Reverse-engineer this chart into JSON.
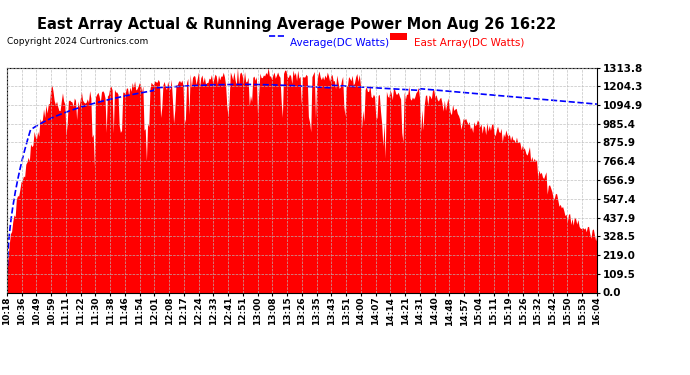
{
  "title": "East Array Actual & Running Average Power Mon Aug 26 16:22",
  "copyright": "Copyright 2024 Curtronics.com",
  "legend_avg": "Average(DC Watts)",
  "legend_east": "East Array(DC Watts)",
  "ylabel_ticks": [
    0.0,
    109.5,
    219.0,
    328.5,
    437.9,
    547.4,
    656.9,
    766.4,
    875.9,
    985.4,
    1094.9,
    1204.3,
    1313.8
  ],
  "ymax": 1313.8,
  "ymin": 0.0,
  "bg_color": "#ffffff",
  "plot_bg_color": "#ffffff",
  "grid_color": "#bbbbbb",
  "bar_color": "#ff0000",
  "avg_line_color": "#0000ff",
  "title_color": "#000000",
  "copyright_color": "#000000",
  "legend_avg_color": "#0000ff",
  "legend_east_color": "#ff0000",
  "x_labels": [
    "10:18",
    "10:36",
    "10:49",
    "10:59",
    "11:11",
    "11:22",
    "11:30",
    "11:38",
    "11:46",
    "11:54",
    "12:01",
    "12:08",
    "12:17",
    "12:24",
    "12:33",
    "12:41",
    "12:51",
    "13:00",
    "13:08",
    "13:15",
    "13:26",
    "13:35",
    "13:43",
    "13:51",
    "14:00",
    "14:07",
    "14:14",
    "14:21",
    "14:31",
    "14:40",
    "14:48",
    "14:57",
    "15:04",
    "15:11",
    "15:19",
    "15:26",
    "15:32",
    "15:42",
    "15:50",
    "15:53",
    "16:04"
  ]
}
